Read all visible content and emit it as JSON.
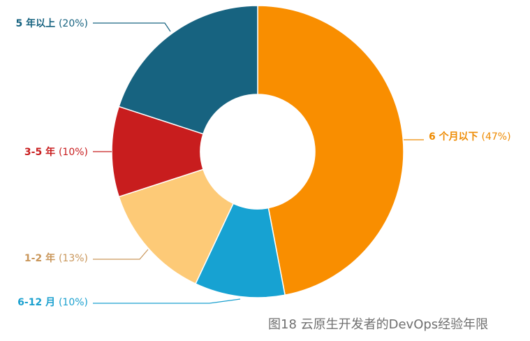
{
  "caption": "图18  云原生开发者的DevOps经验年限",
  "chart_data": {
    "type": "pie",
    "donut": true,
    "title": "",
    "slices": [
      {
        "name": "6 个月以下",
        "pct": "(47%)",
        "value": 47,
        "color": "#f98e00"
      },
      {
        "name": "6-12 月",
        "pct": "(10%)",
        "value": 10,
        "color": "#17a2d2"
      },
      {
        "name": "1-2 年",
        "pct": "(13%)",
        "value": 13,
        "color": "#fdca77"
      },
      {
        "name": "3-5 年",
        "pct": "(10%)",
        "value": 10,
        "color": "#c81d1e"
      },
      {
        "name": "5 年以上",
        "pct": "(20%)",
        "value": 20,
        "color": "#176380"
      }
    ],
    "label_colors": [
      "#ee8a00",
      "#1aa0cf",
      "#c9965a",
      "#c81d1e",
      "#176380"
    ]
  }
}
